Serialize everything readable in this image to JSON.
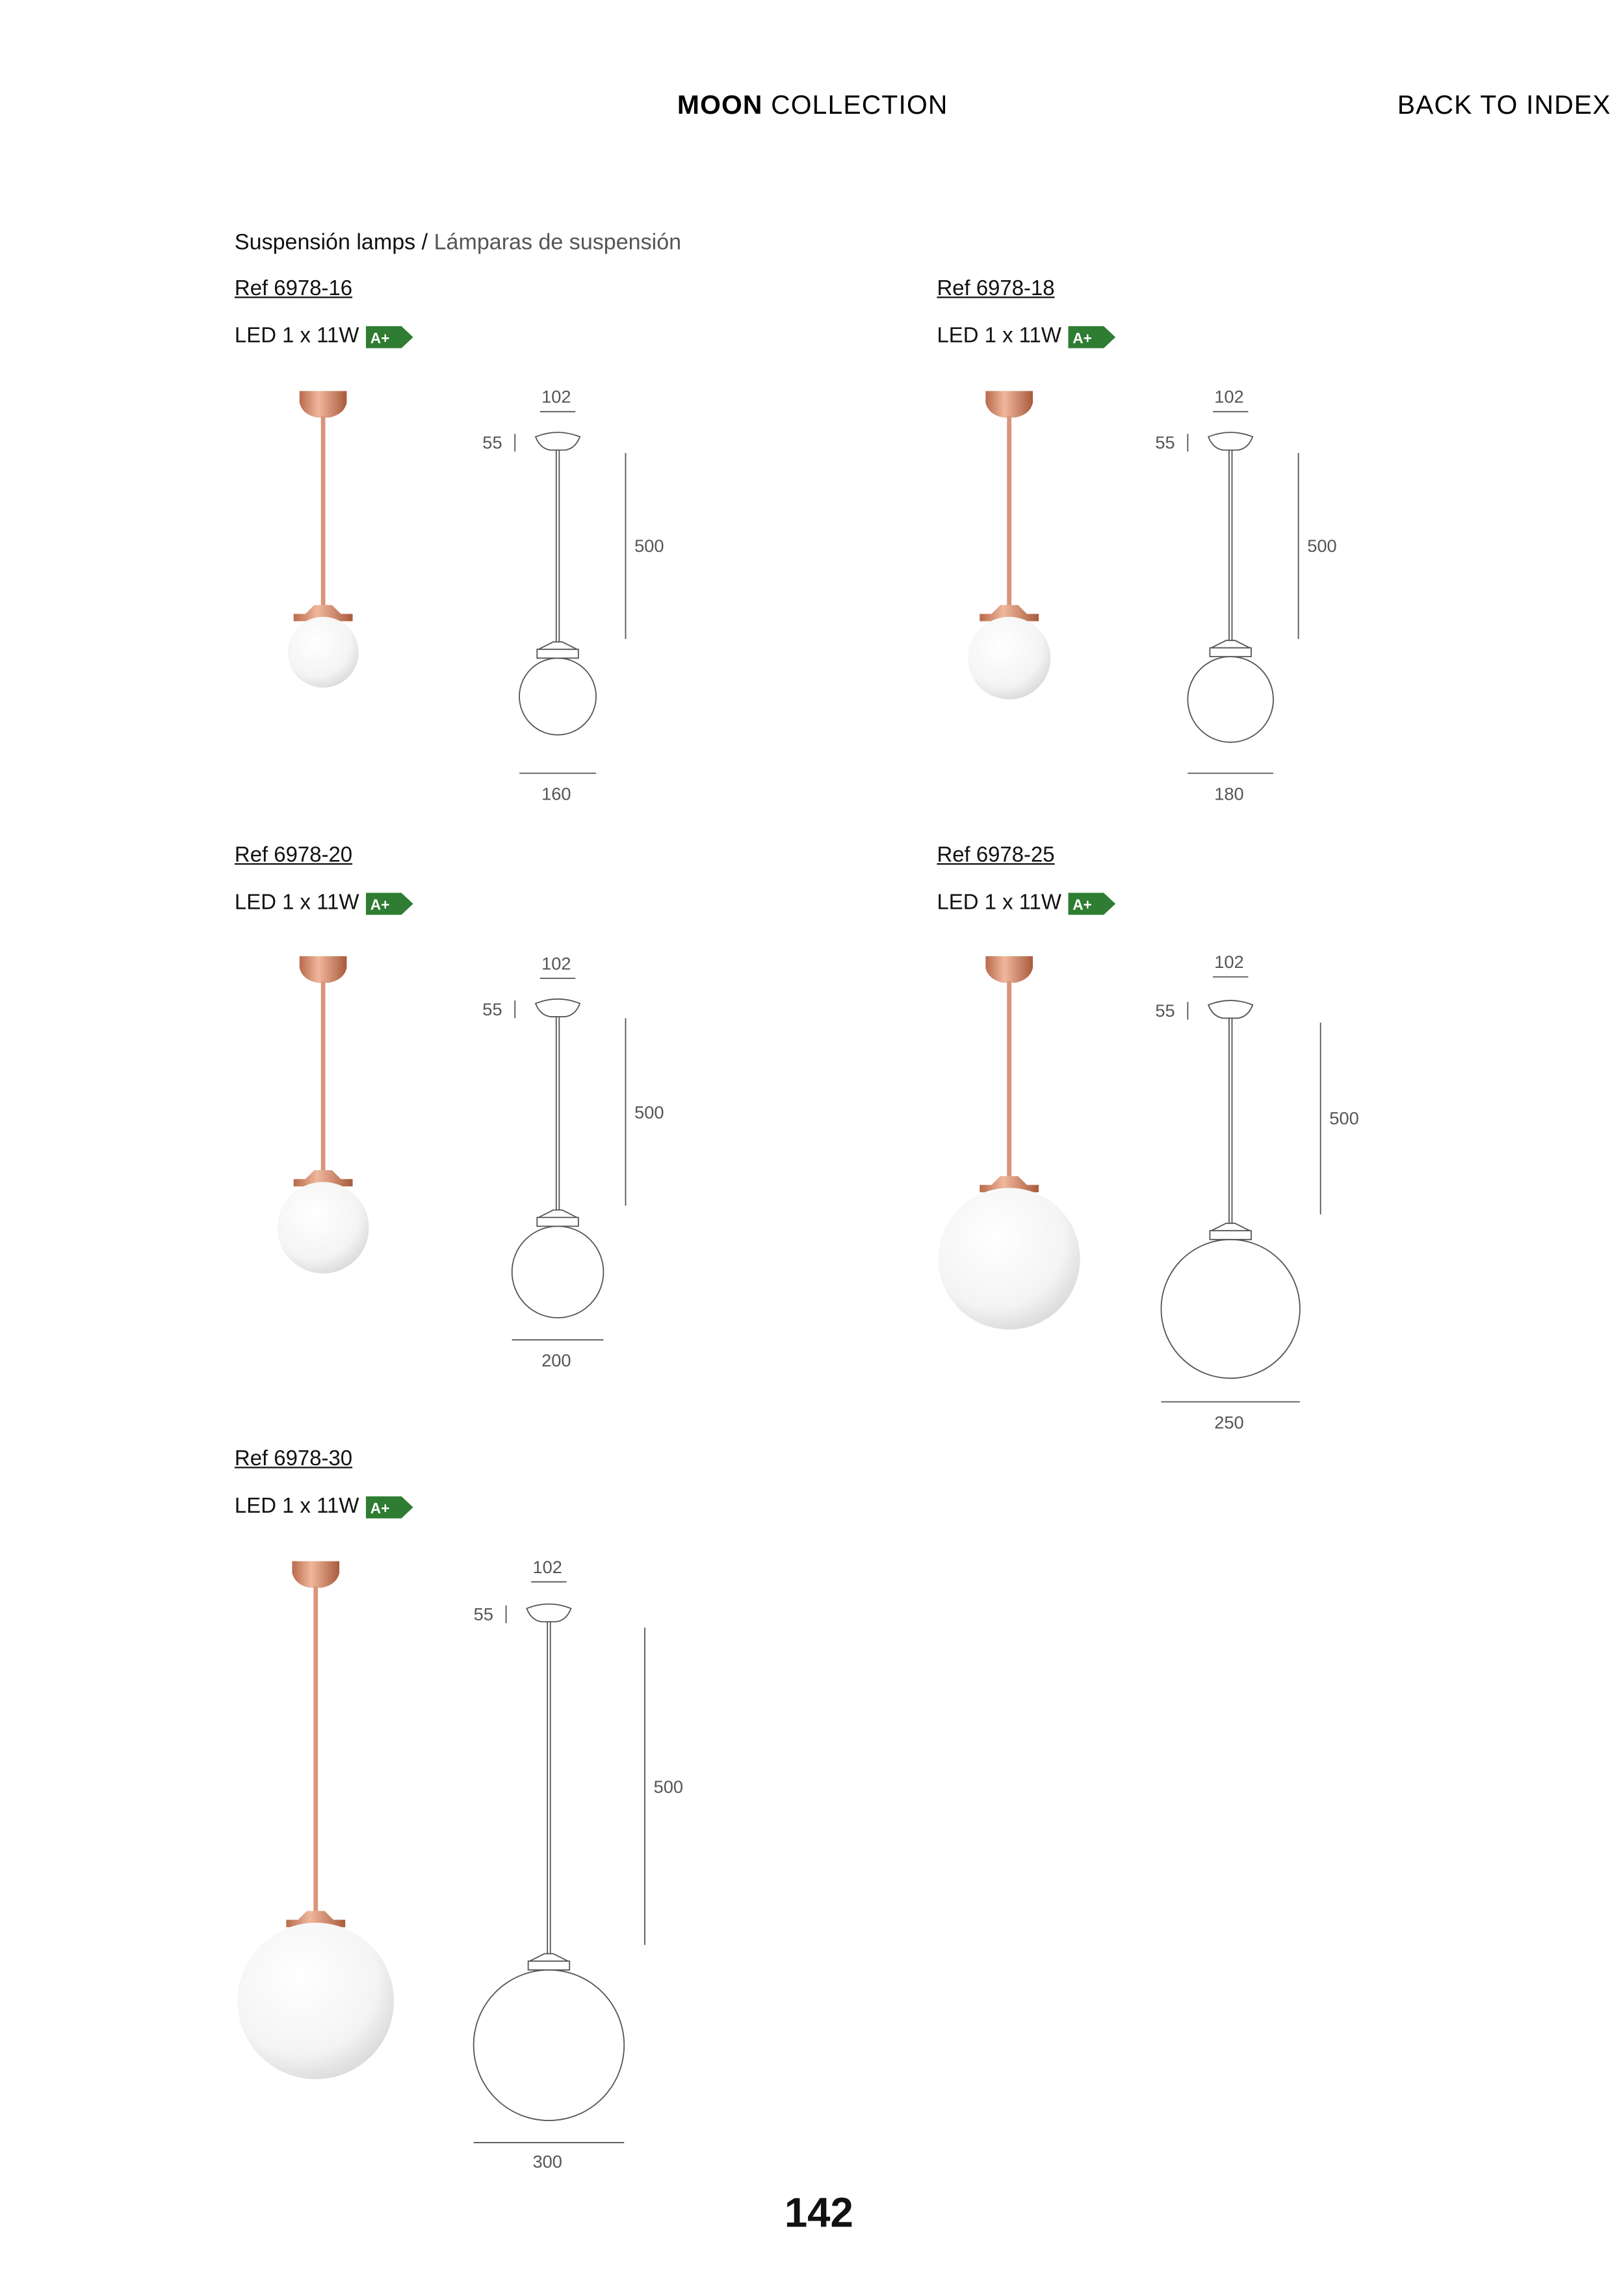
{
  "header": {
    "collection_bold": "MOON",
    "collection_rest": "COLLECTION",
    "back_link": "BACK TO INDEX"
  },
  "section": {
    "title_en": "Suspensión lamps",
    "separator": "/",
    "title_es": "Lámparas de suspensión"
  },
  "products": [
    {
      "ref": "Ref 6978-16",
      "power": "LED 1 x 11W",
      "energy_class": "A+",
      "dims": {
        "width_top": "102",
        "canopy_height": "55",
        "length": "500",
        "diameter": "160"
      }
    },
    {
      "ref": "Ref 6978-18",
      "power": "LED 1 x 11W",
      "energy_class": "A+",
      "dims": {
        "width_top": "102",
        "canopy_height": "55",
        "length": "500",
        "diameter": "180"
      }
    },
    {
      "ref": "Ref 6978-20",
      "power": "LED 1 x 11W",
      "energy_class": "A+",
      "dims": {
        "width_top": "102",
        "canopy_height": "55",
        "length": "500",
        "diameter": "200"
      }
    },
    {
      "ref": "Ref 6978-25",
      "power": "LED 1 x 11W",
      "energy_class": "A+",
      "dims": {
        "width_top": "102",
        "canopy_height": "55",
        "length": "500",
        "diameter": "250"
      }
    },
    {
      "ref": "Ref 6978-30",
      "power": "LED 1 x 11W",
      "energy_class": "A+",
      "dims": {
        "width_top": "102",
        "canopy_height": "55",
        "length": "500",
        "diameter": "300"
      }
    }
  ],
  "colors": {
    "energy_badge": "#2e7d32",
    "copper": "#d48a6a",
    "text": "#111111",
    "dim_text": "#555555"
  },
  "page_number": "142"
}
